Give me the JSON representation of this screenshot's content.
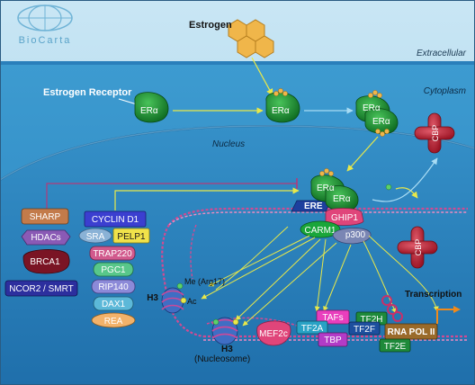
{
  "logo": {
    "text": "BioCarta"
  },
  "compartments": {
    "extracellular": "Extracellular",
    "cytoplasm": "Cytoplasm",
    "nucleus": "Nucleus"
  },
  "ligand": {
    "label": "Estrogen"
  },
  "receptor": {
    "label": "Estrogen Receptor",
    "er_alpha": "ERα"
  },
  "dna": {
    "ere": "ERE",
    "transcription": "Transcription"
  },
  "coactivators": {
    "ghip1": "GHIP1",
    "carm1": "CARM1",
    "p300": "p300",
    "cbp": "CBP"
  },
  "corepressors": [
    "SHARP",
    "HDACs",
    "BRCA1",
    "NCOR2 / SMRT"
  ],
  "regulators": {
    "cyclin_d1": "CYCLIN D1",
    "sra": "SRA",
    "pelp1": "PELP1",
    "trap220": "TRAP220",
    "pgc1": "PGC1",
    "rip140": "RIP140",
    "dax1": "DAX1",
    "rea": "REA"
  },
  "histone": {
    "h3": "H3",
    "me": "Me (Arg17)",
    "ac": "Ac",
    "nucleosome": "(Nucleosome)"
  },
  "basal_machinery": {
    "mef2c": "MEF2c",
    "tafs": "TAFs",
    "tf2a": "TF2A",
    "tbp": "TBP",
    "tf2h": "TF2H",
    "tf2f": "TF2F",
    "rna_pol_ii": "RNA POL II",
    "tf2e": "TF2E"
  }
}
